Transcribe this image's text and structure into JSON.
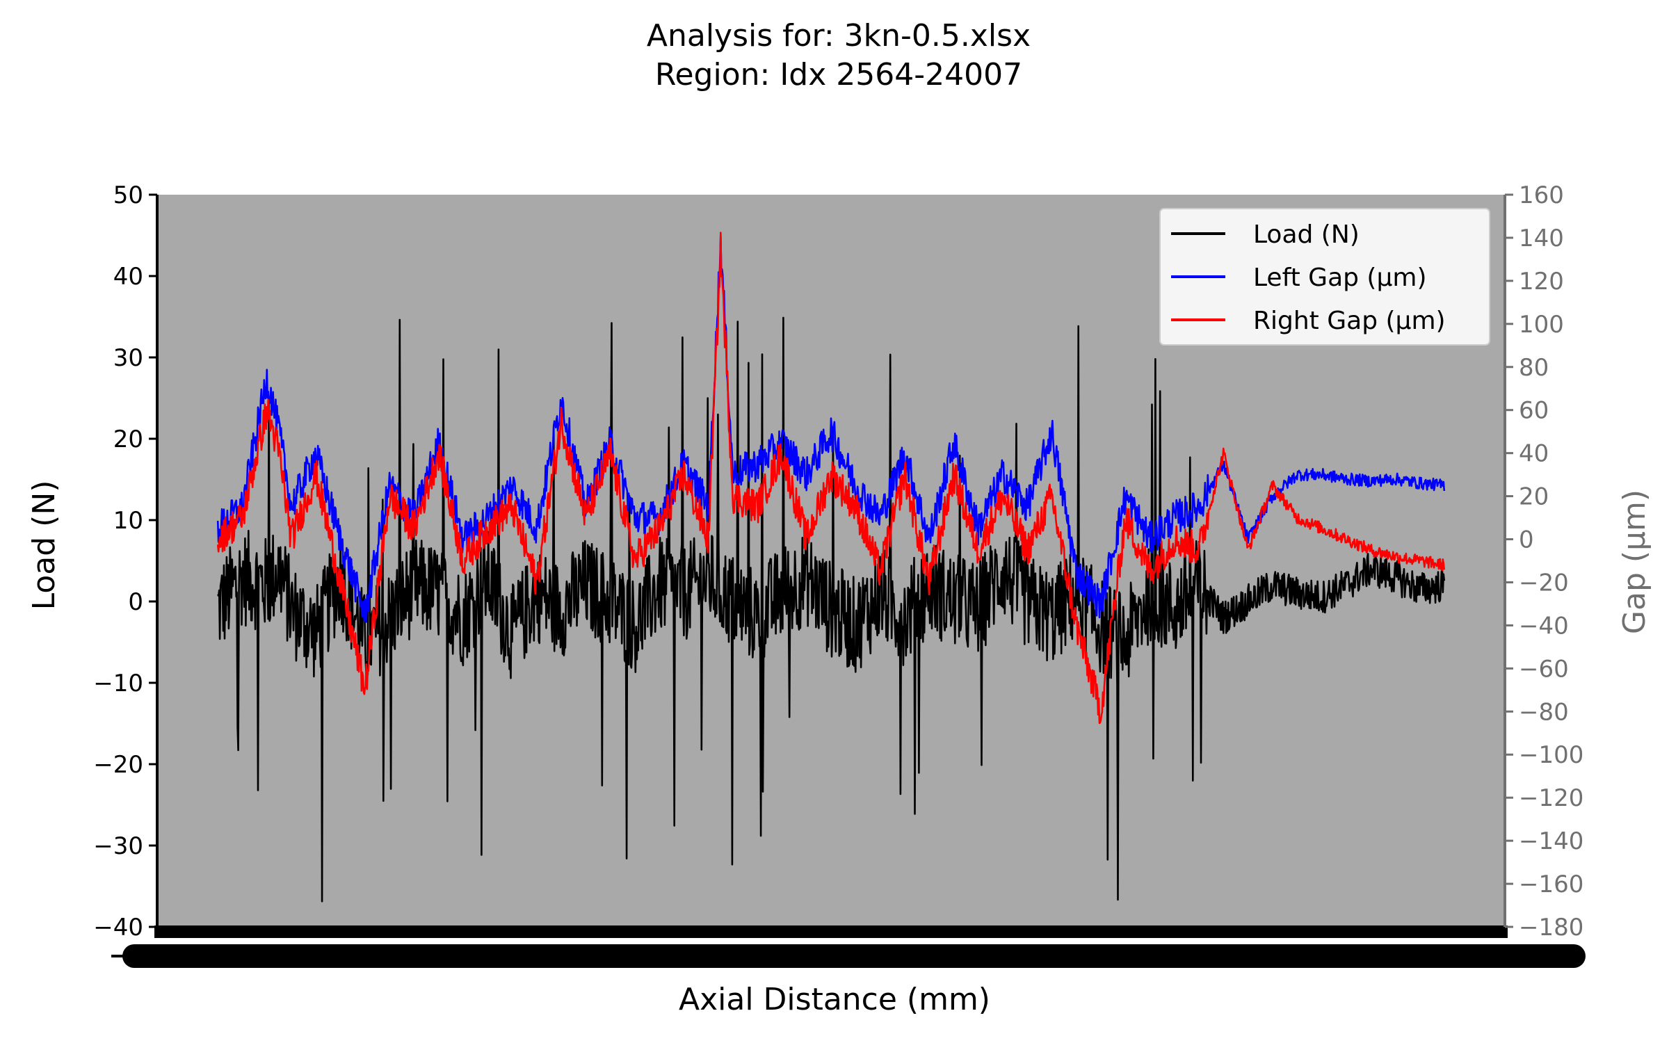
{
  "chart_data": {
    "type": "line",
    "title": "Analysis for: 3kn-0.5.xlsx",
    "subtitle": "Region: Idx 2564-24007",
    "xlabel": "Axial Distance (mm)",
    "ylabel": "Load (N)",
    "y2label": "Gap (µm)",
    "ylim": [
      -40,
      50
    ],
    "y2lim": [
      -180,
      160
    ],
    "yticks": [
      "50",
      "40",
      "30",
      "20",
      "10",
      "0",
      "−10",
      "−20",
      "−30",
      "−40"
    ],
    "y2ticks": [
      "160",
      "140",
      "120",
      "100",
      "80",
      "60",
      "40",
      "20",
      "0",
      "−20",
      "−40",
      "−60",
      "−80",
      "−100",
      "−120",
      "−140",
      "−160",
      "−180"
    ],
    "xlim": [
      0,
      100
    ],
    "x_tick_labels_overlapping": true,
    "grid": false,
    "plot_background": "#a9a9a9",
    "legend_position": "top-right",
    "series": [
      {
        "name": "Load (N)",
        "color": "#000000",
        "axis": "left",
        "noise_amplitude": 6,
        "x": [
          0,
          2,
          4,
          5,
          6,
          8,
          10,
          12,
          14,
          16,
          18,
          20,
          22,
          24,
          26,
          28,
          30,
          32,
          34,
          36,
          38,
          40,
          42,
          44,
          46,
          48,
          50,
          52,
          54,
          56,
          58,
          60,
          62,
          64,
          66,
          68,
          70,
          72,
          74,
          76,
          78,
          80,
          82,
          84,
          86,
          88,
          90,
          92,
          94,
          96,
          98,
          100
        ],
        "y": [
          -1,
          3,
          2,
          4,
          -1,
          -4,
          3,
          -5,
          -2,
          2,
          1,
          -2,
          3,
          -4,
          1,
          -1,
          2,
          0,
          -3,
          2,
          1,
          3,
          0,
          -2,
          1,
          3,
          -1,
          -3,
          1,
          -2,
          2,
          0,
          -1,
          4,
          0,
          -2,
          1,
          -3,
          -5,
          1,
          -1,
          2,
          -2,
          0,
          2,
          1,
          0.5,
          2,
          4,
          3,
          1.5,
          2
        ]
      },
      {
        "name": "Left Gap (µm)",
        "color": "#0000ff",
        "axis": "right",
        "noise_amplitude": 8,
        "x": [
          0,
          2,
          4,
          5,
          6,
          8,
          10,
          12,
          14,
          16,
          18,
          20,
          22,
          24,
          26,
          28,
          30,
          32,
          34,
          36,
          38,
          40,
          41,
          42,
          44,
          46,
          48,
          50,
          52,
          54,
          56,
          58,
          60,
          62,
          64,
          66,
          68,
          70,
          72,
          74,
          76,
          78,
          80,
          82,
          84,
          86,
          88,
          90,
          92,
          94,
          96,
          98,
          100
        ],
        "y": [
          5,
          15,
          75,
          50,
          15,
          40,
          0,
          -35,
          25,
          10,
          45,
          0,
          10,
          25,
          5,
          65,
          15,
          45,
          10,
          10,
          35,
          15,
          138,
          30,
          35,
          45,
          30,
          50,
          25,
          10,
          40,
          0,
          45,
          5,
          30,
          15,
          50,
          -15,
          -30,
          20,
          0,
          10,
          15,
          35,
          0,
          20,
          30,
          30,
          28,
          27,
          28,
          26,
          25
        ]
      },
      {
        "name": "Right Gap (µm)",
        "color": "#ff0000",
        "axis": "right",
        "noise_amplitude": 8,
        "x": [
          0,
          2,
          4,
          5,
          6,
          8,
          10,
          12,
          14,
          16,
          18,
          20,
          22,
          24,
          26,
          28,
          30,
          32,
          34,
          36,
          38,
          40,
          41,
          42,
          44,
          46,
          48,
          50,
          52,
          54,
          56,
          58,
          60,
          62,
          64,
          66,
          68,
          70,
          72,
          74,
          76,
          78,
          80,
          82,
          84,
          86,
          88,
          90,
          92,
          94,
          96,
          98,
          100
        ],
        "y": [
          0,
          10,
          60,
          40,
          0,
          30,
          -20,
          -70,
          20,
          5,
          40,
          -10,
          5,
          15,
          -20,
          55,
          10,
          40,
          -10,
          5,
          30,
          0,
          135,
          20,
          15,
          40,
          0,
          30,
          15,
          -15,
          30,
          -20,
          30,
          -5,
          20,
          -5,
          20,
          -40,
          -80,
          10,
          -15,
          0,
          -5,
          40,
          -5,
          25,
          10,
          5,
          0,
          -5,
          -8,
          -10,
          -12
        ]
      }
    ]
  }
}
